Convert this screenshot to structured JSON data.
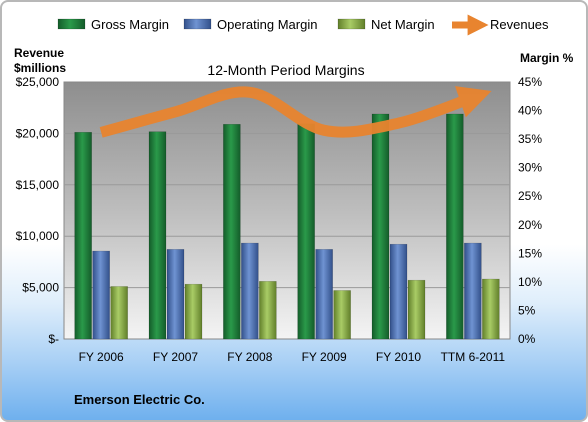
{
  "chart_data": {
    "type": "bar",
    "title": "12-Month Period Margins",
    "left_axis_title": [
      "Revenue",
      "$millions"
    ],
    "right_axis_title": "Margin %",
    "categories": [
      "FY 2006",
      "FY 2007",
      "FY 2008",
      "FY 2009",
      "FY 2010",
      "TTM 6-2011"
    ],
    "left_ylim": [
      0,
      25000
    ],
    "left_ticks": [
      "$-",
      "$5,000",
      "$10,000",
      "$15,000",
      "$20,000",
      "$25,000"
    ],
    "right_ylim": [
      0,
      45
    ],
    "right_ticks": [
      "0%",
      "5%",
      "10%",
      "15%",
      "20%",
      "25%",
      "30%",
      "35%",
      "40%",
      "45%"
    ],
    "series": [
      {
        "name": "Gross Margin",
        "type": "bar",
        "axis": "right",
        "color": "#1e7a3a",
        "values": [
          36.2,
          36.3,
          37.6,
          37.7,
          39.4,
          39.4
        ]
      },
      {
        "name": "Operating Margin",
        "type": "bar",
        "axis": "right",
        "color": "#4a6fb0",
        "values": [
          15.4,
          15.7,
          16.8,
          15.7,
          16.6,
          16.8
        ]
      },
      {
        "name": "Net Margin",
        "type": "bar",
        "axis": "right",
        "color": "#8db04c",
        "values": [
          9.2,
          9.6,
          10.1,
          8.5,
          10.3,
          10.5
        ]
      },
      {
        "name": "Revenues",
        "type": "line",
        "axis": "left",
        "color": "#e07b2a",
        "values": [
          20100,
          22100,
          24000,
          20300,
          21000,
          23500
        ]
      }
    ],
    "legend_position": "top",
    "grid": true
  },
  "company_name": "Emerson Electric Co."
}
